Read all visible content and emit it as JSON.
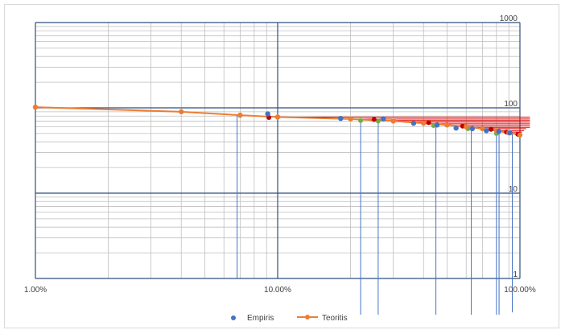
{
  "chart_data": {
    "type": "scatter",
    "title": "",
    "xlabel": "",
    "ylabel": "",
    "x_scale": "log",
    "y_scale": "log",
    "xlim": [
      1,
      100
    ],
    "ylim": [
      1,
      1000
    ],
    "x_ticks": [
      "1.00%",
      "10.00%",
      "100.00%"
    ],
    "y_ticks": [
      "1",
      "10",
      "100",
      "1000"
    ],
    "grid": true,
    "legend_position": "bottom",
    "series": [
      {
        "name": "Empiris",
        "color": "#4472C4",
        "marker": "circle",
        "x": [
          9.1,
          18.2,
          27.3,
          36.4,
          45.5,
          54.5,
          63.6,
          72.7,
          81.8,
          90.9
        ],
        "y": [
          85,
          75,
          74,
          66,
          63,
          58,
          57,
          54,
          53,
          51
        ]
      },
      {
        "name": "Teoritis",
        "color": "#ED7D31",
        "marker": "circle-line",
        "x": [
          1,
          4,
          7,
          10,
          20,
          30,
          40,
          50,
          60,
          70,
          80,
          90,
          100
        ],
        "y": [
          102,
          90,
          82,
          78,
          74,
          70,
          66,
          63,
          60,
          57,
          54,
          51,
          48
        ]
      }
    ],
    "extra_points": [
      {
        "color": "#70AD47",
        "x": [
          7,
          22,
          26,
          44,
          61,
          80
        ],
        "y": [
          82,
          71,
          70,
          62,
          57,
          50
        ]
      },
      {
        "color": "#C00000",
        "x": [
          9.2,
          25,
          42,
          58,
          76,
          88,
          98
        ],
        "y": [
          77,
          73,
          67,
          61,
          56,
          52,
          49
        ]
      }
    ],
    "vertical_lines": {
      "color": "#4472C4",
      "x": [
        6.8,
        22,
        26,
        45,
        63,
        80,
        82,
        93
      ],
      "y_top": [
        82,
        71,
        70,
        62,
        57,
        50,
        54,
        49
      ],
      "y_bottom": [
        1,
        0.23,
        0.23,
        0.3,
        0.3,
        0.16,
        0.17,
        0.4
      ]
    },
    "horizontal_lines": {
      "color": "#E00000",
      "y": [
        78,
        74,
        71,
        68,
        65,
        62,
        59,
        57,
        54,
        52,
        50
      ],
      "x_start": [
        9.3,
        20,
        24,
        35,
        45,
        55,
        63,
        72,
        80,
        86,
        92
      ],
      "x_end": [
        110,
        110,
        110,
        110,
        110,
        110,
        110,
        106,
        104,
        102,
        100
      ]
    }
  }
}
